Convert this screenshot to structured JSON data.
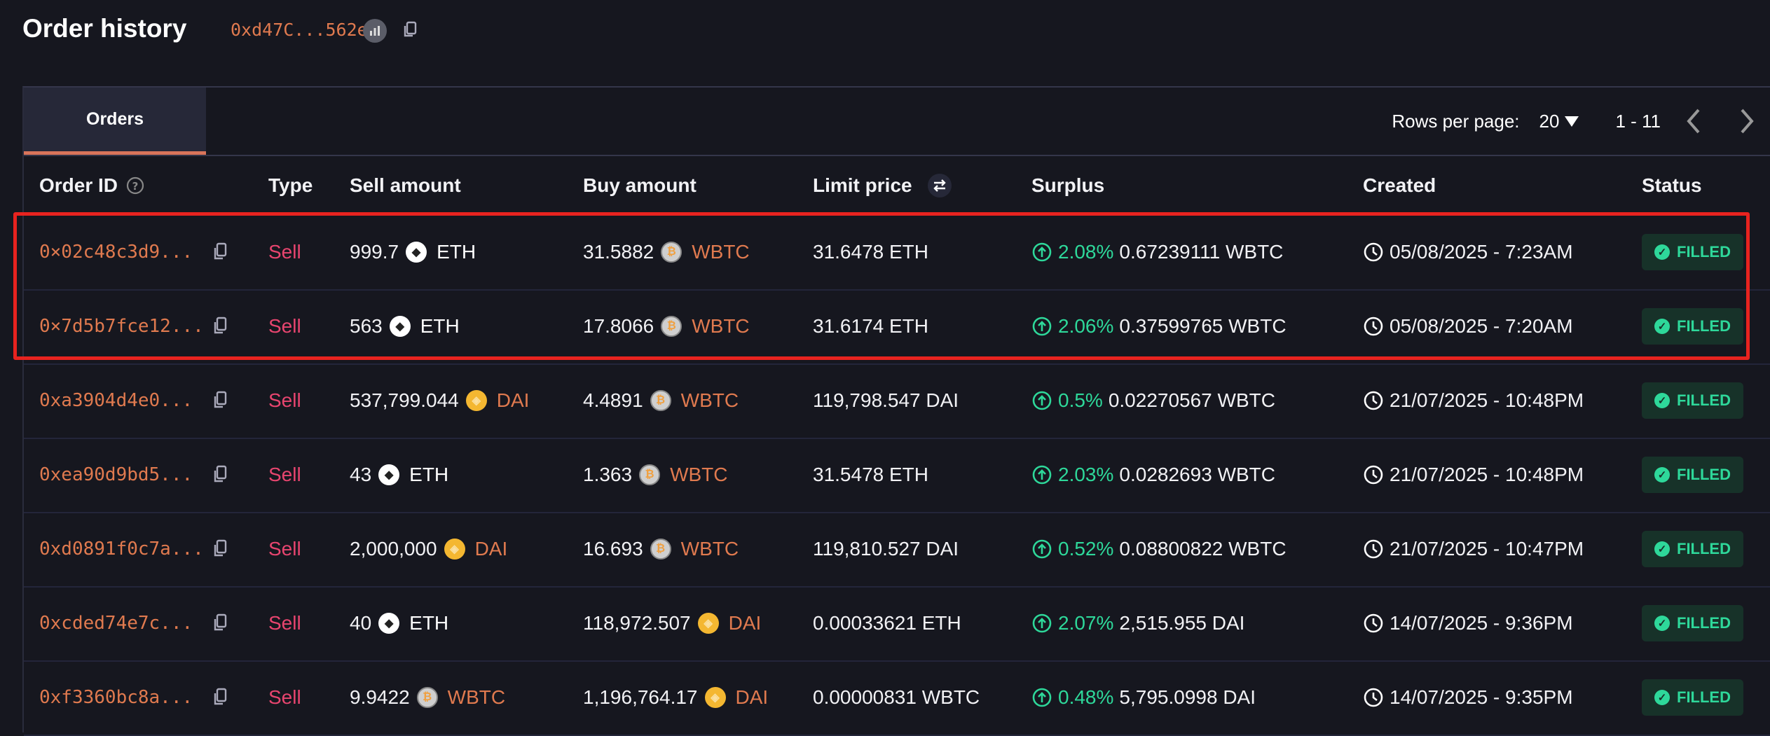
{
  "header": {
    "title": "Order history",
    "address": "0xd47C...562e"
  },
  "tabs": [
    {
      "label": "Orders",
      "active": true
    }
  ],
  "pagination": {
    "rows_per_page_label": "Rows per page:",
    "rows_per_page": "20",
    "range": "1 - 11"
  },
  "columns": [
    "Order ID",
    "Type",
    "Sell amount",
    "Buy amount",
    "Limit price",
    "Surplus",
    "Created",
    "Status"
  ],
  "colors": {
    "accent": "#e07a4f",
    "sell": "#e8456f",
    "surplus": "#2ed89a",
    "highlight": "#e8231f"
  },
  "highlighted_rows": [
    0,
    1
  ],
  "orders": [
    {
      "id": "0×02c48c3d9...",
      "type": "Sell",
      "sell_amount": "999.7",
      "sell_token": "ETH",
      "buy_amount": "31.5882",
      "buy_token": "WBTC",
      "limit_price": "31.6478 ETH",
      "surplus_pct": "2.08%",
      "surplus_amount": "0.67239111 WBTC",
      "created": "05/08/2025 - 7:23AM",
      "status": "FILLED"
    },
    {
      "id": "0×7d5b7fce12...",
      "type": "Sell",
      "sell_amount": "563",
      "sell_token": "ETH",
      "buy_amount": "17.8066",
      "buy_token": "WBTC",
      "limit_price": "31.6174 ETH",
      "surplus_pct": "2.06%",
      "surplus_amount": "0.37599765 WBTC",
      "created": "05/08/2025 - 7:20AM",
      "status": "FILLED"
    },
    {
      "id": "0xa3904d4e0...",
      "type": "Sell",
      "sell_amount": "537,799.044",
      "sell_token": "DAI",
      "buy_amount": "4.4891",
      "buy_token": "WBTC",
      "limit_price": "119,798.547 DAI",
      "surplus_pct": "0.5%",
      "surplus_amount": "0.02270567 WBTC",
      "created": "21/07/2025 - 10:48PM",
      "status": "FILLED"
    },
    {
      "id": "0xea90d9bd5...",
      "type": "Sell",
      "sell_amount": "43",
      "sell_token": "ETH",
      "buy_amount": "1.363",
      "buy_token": "WBTC",
      "limit_price": "31.5478 ETH",
      "surplus_pct": "2.03%",
      "surplus_amount": "0.0282693 WBTC",
      "created": "21/07/2025 - 10:48PM",
      "status": "FILLED"
    },
    {
      "id": "0xd0891f0c7a...",
      "type": "Sell",
      "sell_amount": "2,000,000",
      "sell_token": "DAI",
      "buy_amount": "16.693",
      "buy_token": "WBTC",
      "limit_price": "119,810.527 DAI",
      "surplus_pct": "0.52%",
      "surplus_amount": "0.08800822 WBTC",
      "created": "21/07/2025 - 10:47PM",
      "status": "FILLED"
    },
    {
      "id": "0xcded74e7c...",
      "type": "Sell",
      "sell_amount": "40",
      "sell_token": "ETH",
      "buy_amount": "118,972.507",
      "buy_token": "DAI",
      "limit_price": "0.00033621 ETH",
      "surplus_pct": "2.07%",
      "surplus_amount": "2,515.955 DAI",
      "created": "14/07/2025 - 9:36PM",
      "status": "FILLED"
    },
    {
      "id": "0xf3360bc8a...",
      "type": "Sell",
      "sell_amount": "9.9422",
      "sell_token": "WBTC",
      "buy_amount": "1,196,764.17",
      "buy_token": "DAI",
      "limit_price": "0.00000831 WBTC",
      "surplus_pct": "0.48%",
      "surplus_amount": "5,795.0998 DAI",
      "created": "14/07/2025 - 9:35PM",
      "status": "FILLED"
    }
  ]
}
